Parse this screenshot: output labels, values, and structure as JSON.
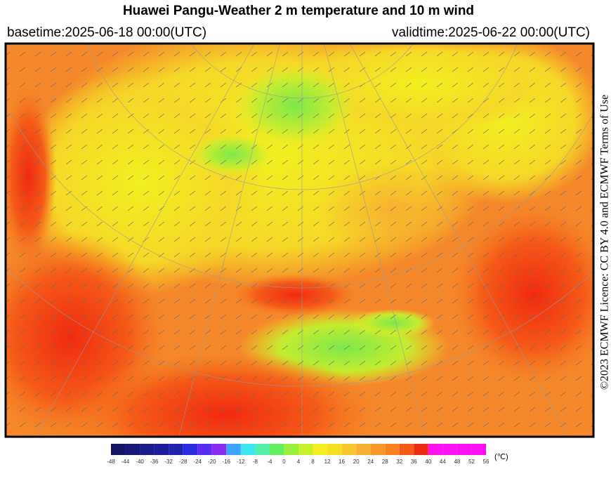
{
  "header": {
    "title": "Huawei Pangu-Weather  2 m temperature and 10 m wind",
    "basetime": "basetime:2025-06-18 00:00(UTC)",
    "validtime": "validtime:2025-06-22 00:00(UTC)"
  },
  "licence": "©2023 ECMWF Licence: CC BY 4.0 and ECMWF Terms of Use",
  "colorbar": {
    "unit": "(℃)",
    "ticks": [
      -48,
      -44,
      -40,
      -36,
      -32,
      -28,
      -24,
      -20,
      -16,
      -12,
      -8,
      -4,
      0,
      4,
      8,
      12,
      16,
      20,
      24,
      28,
      32,
      36,
      40,
      44,
      48,
      52,
      56
    ],
    "colors": [
      "#15156a",
      "#18187a",
      "#1b1b8a",
      "#1e1e9c",
      "#2222b0",
      "#2b2be6",
      "#5a2cf0",
      "#8c2cf0",
      "#3aa4ff",
      "#3ee6f0",
      "#52f0a8",
      "#62f060",
      "#96f03c",
      "#c8f02c",
      "#f4f020",
      "#f8e020",
      "#f8c830",
      "#f8b030",
      "#f89828",
      "#f88020",
      "#f55a18",
      "#ee2a10",
      "#ff10f0",
      "#ff10f0",
      "#ff10f0",
      "#ff10f0"
    ]
  }
}
